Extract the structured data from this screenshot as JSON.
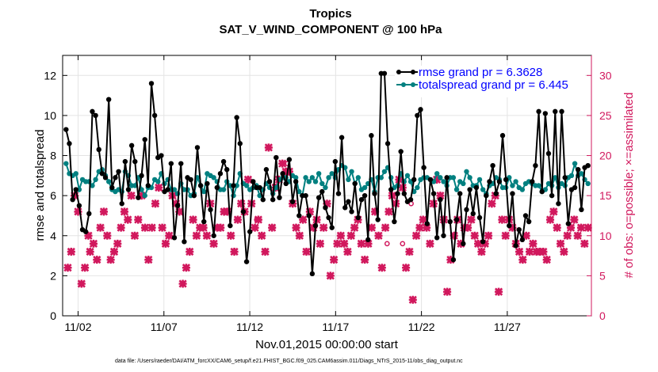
{
  "chart_data": {
    "type": "line",
    "title": "Tropics",
    "subtitle": "SAT_V_WIND_COMPONENT @ 100 hPa",
    "xlabel": "Nov.01,2015 00:00:00 start",
    "ylabel": "rmse and totalspread",
    "y2label": "# of obs: o=possible; ×=assimilated",
    "xlim": [
      0.6,
      31.4
    ],
    "ylim": [
      0,
      13
    ],
    "y2lim": [
      0,
      32.5
    ],
    "xticks": [
      1.5,
      6.5,
      11.5,
      16.5,
      21.5,
      26.5
    ],
    "xticklabels": [
      "11/02",
      "11/07",
      "11/12",
      "11/17",
      "11/22",
      "11/27"
    ],
    "yticks": [
      0,
      2,
      4,
      6,
      8,
      10,
      12
    ],
    "y2ticks": [
      0,
      5,
      10,
      15,
      20,
      25,
      30
    ],
    "grid": true,
    "legend_position": "top-right",
    "colors": {
      "rmse": "#000000",
      "spread": "#008080",
      "obs": "#d1185d",
      "legend_text": "#0000ff"
    },
    "series": [
      {
        "name": "rmse grand pr = 6.3628",
        "style": "line-dots",
        "values": [
          9.3,
          8.6,
          5.8,
          6.3,
          5.5,
          4.3,
          4.2,
          5.1,
          10.2,
          10.0,
          8.3,
          7.1,
          6.9,
          10.8,
          6.4,
          6.9,
          7.2,
          5.6,
          7.7,
          6.3,
          8.5,
          7.7,
          5.9,
          7.0,
          8.8,
          6.5,
          11.6,
          10.0,
          7.9,
          8.0,
          6.2,
          6.3,
          7.6,
          3.9,
          5.5,
          7.6,
          3.7,
          6.9,
          6.8,
          6.0,
          8.4,
          6.5,
          4.7,
          6.6,
          5.3,
          4.0,
          6.4,
          7.1,
          7.7,
          7.3,
          4.5,
          6.5,
          9.9,
          8.6,
          5.2,
          2.7,
          4.2,
          6.7,
          6.4,
          6.4,
          5.8,
          7.3,
          6.7,
          5.8,
          7.9,
          5.9,
          7.1,
          6.6,
          7.8,
          5.7,
          6.7,
          5.0,
          6.0,
          6.0,
          5.0,
          2.1,
          4.5,
          5.9,
          6.2,
          5.4,
          4.9,
          4.4,
          7.7,
          6.1,
          8.9,
          5.4,
          5.7,
          5.2,
          6.6,
          4.9,
          5.8,
          6.0,
          3.8,
          9.0,
          6.1,
          4.8,
          12.1,
          12.1,
          8.6,
          6.3,
          4.7,
          6.1,
          8.2,
          6.1,
          5.7,
          5.8,
          6.8,
          10.0,
          10.3,
          7.4,
          4.6,
          6.8,
          6.1,
          3.9,
          5.8,
          4.0,
          6.9,
          4.7,
          2.8,
          4.8,
          6.1,
          3.6,
          5.3,
          6.3,
          5.1,
          6.4,
          4.9,
          3.7,
          6.0,
          6.7,
          7.5,
          6.1,
          6.7,
          9.0,
          6.8,
          4.5,
          6.1,
          3.5,
          4.3,
          3.8,
          5.0,
          4.7,
          6.7,
          7.5,
          10.2,
          6.2,
          10.1,
          8.1,
          6.0,
          10.2,
          5.6,
          10.2,
          6.9,
          4.6,
          6.3,
          6.4,
          7.3,
          5.3,
          7.4,
          7.5
        ]
      },
      {
        "name": "totalspread grand pr = 6.445",
        "style": "line-dots",
        "values": [
          7.6,
          7.1,
          7.0,
          7.1,
          6.3,
          6.8,
          6.7,
          6.7,
          6.5,
          6.8,
          7.2,
          7.3,
          7.0,
          6.7,
          6.3,
          6.2,
          6.3,
          6.2,
          7.2,
          7.0,
          6.5,
          6.5,
          6.9,
          6.3,
          6.0,
          6.4,
          6.4,
          6.8,
          6.7,
          7.1,
          6.6,
          6.8,
          6.3,
          6.3,
          6.1,
          6.6,
          6.3,
          6.3,
          6.0,
          6.1,
          6.9,
          6.5,
          6.2,
          7.1,
          7.0,
          6.9,
          6.7,
          6.3,
          6.3,
          6.7,
          6.5,
          6.0,
          6.5,
          7.1,
          6.6,
          6.5,
          6.3,
          6.4,
          6.5,
          6.0,
          6.3,
          6.6,
          6.4,
          6.1,
          6.4,
          6.8,
          6.9,
          6.9,
          6.7,
          7.0,
          6.9,
          6.2,
          6.0,
          6.9,
          6.7,
          6.9,
          6.7,
          7.1,
          6.6,
          6.4,
          6.9,
          7.1,
          6.9,
          7.3,
          7.5,
          7.4,
          6.8,
          7.2,
          6.6,
          6.9,
          6.3,
          6.4,
          6.6,
          6.8,
          6.2,
          6.9,
          6.9,
          7.2,
          7.4,
          6.9,
          6.4,
          6.5,
          7.1,
          6.7,
          7.0,
          6.7,
          6.2,
          6.4,
          6.8,
          6.9,
          6.9,
          6.8,
          6.7,
          7.1,
          6.9,
          6.7,
          6.5,
          6.9,
          6.9,
          6.3,
          6.7,
          6.6,
          7.2,
          6.9,
          6.5,
          6.5,
          6.8,
          6.3,
          6.1,
          6.5,
          6.6,
          6.9,
          6.8,
          6.4,
          6.4,
          6.9,
          6.5,
          6.7,
          6.4,
          6.3,
          6.6,
          6.7,
          6.6,
          6.5,
          6.5,
          6.2,
          6.3,
          6.6,
          6.5,
          6.9,
          6.4,
          6.6,
          6.5,
          6.9,
          7.0,
          7.6,
          7.0,
          7.1,
          6.8,
          6.6
        ]
      },
      {
        "name": "# of obs assimilated",
        "axis": "right",
        "style": "markers",
        "points": [
          [
            0.9,
            6
          ],
          [
            1.1,
            8
          ],
          [
            1.3,
            15
          ],
          [
            1.5,
            13
          ],
          [
            1.7,
            4
          ],
          [
            1.9,
            6
          ],
          [
            2.1,
            10
          ],
          [
            2.2,
            8
          ],
          [
            2.4,
            9
          ],
          [
            2.6,
            7
          ],
          [
            2.8,
            11
          ],
          [
            3.0,
            13
          ],
          [
            3.2,
            10
          ],
          [
            3.4,
            7
          ],
          [
            3.6,
            8
          ],
          [
            3.8,
            9
          ],
          [
            4.0,
            11
          ],
          [
            4.2,
            13
          ],
          [
            4.4,
            12
          ],
          [
            4.6,
            15
          ],
          [
            4.8,
            10
          ],
          [
            5.0,
            12
          ],
          [
            5.2,
            15
          ],
          [
            5.4,
            11
          ],
          [
            5.6,
            7
          ],
          [
            5.8,
            11
          ],
          [
            6.0,
            14
          ],
          [
            6.2,
            16
          ],
          [
            6.4,
            11
          ],
          [
            6.6,
            9
          ],
          [
            6.8,
            10
          ],
          [
            7.0,
            15
          ],
          [
            7.2,
            14
          ],
          [
            7.4,
            13
          ],
          [
            7.6,
            4
          ],
          [
            7.8,
            6
          ],
          [
            8.0,
            8
          ],
          [
            8.2,
            12
          ],
          [
            8.4,
            10
          ],
          [
            8.6,
            11
          ],
          [
            8.8,
            11
          ],
          [
            9.0,
            10
          ],
          [
            9.2,
            14
          ],
          [
            9.4,
            9
          ],
          [
            9.6,
            11
          ],
          [
            9.8,
            11
          ],
          [
            10.0,
            13
          ],
          [
            10.2,
            13
          ],
          [
            10.4,
            10
          ],
          [
            10.6,
            8
          ],
          [
            10.8,
            12
          ],
          [
            11.0,
            14
          ],
          [
            11.2,
            13
          ],
          [
            11.4,
            17
          ],
          [
            11.6,
            14
          ],
          [
            11.8,
            11
          ],
          [
            12.0,
            12
          ],
          [
            12.2,
            10
          ],
          [
            12.4,
            8
          ],
          [
            12.6,
            21
          ],
          [
            12.8,
            11
          ],
          [
            13.0,
            16
          ],
          [
            13.2,
            17
          ],
          [
            13.4,
            19
          ],
          [
            13.6,
            18
          ],
          [
            13.8,
            18
          ],
          [
            14.0,
            14
          ],
          [
            14.2,
            11
          ],
          [
            14.4,
            10
          ],
          [
            14.6,
            12
          ],
          [
            14.8,
            8
          ],
          [
            15.0,
            13
          ],
          [
            15.2,
            11
          ],
          [
            15.4,
            12
          ],
          [
            15.6,
            9
          ],
          [
            15.8,
            11
          ],
          [
            16.0,
            14
          ],
          [
            16.2,
            5
          ],
          [
            16.4,
            7
          ],
          [
            16.6,
            9
          ],
          [
            16.8,
            10
          ],
          [
            17.0,
            9
          ],
          [
            17.2,
            8
          ],
          [
            17.4,
            10
          ],
          [
            17.6,
            11
          ],
          [
            17.8,
            12
          ],
          [
            18.0,
            9
          ],
          [
            18.2,
            7
          ],
          [
            18.4,
            9
          ],
          [
            18.6,
            11
          ],
          [
            18.8,
            13
          ],
          [
            19.0,
            10
          ],
          [
            19.2,
            6
          ],
          [
            19.4,
            11
          ],
          [
            19.6,
            13
          ],
          [
            19.8,
            15
          ],
          [
            20.0,
            14
          ],
          [
            20.2,
            17
          ],
          [
            20.4,
            16
          ],
          [
            20.6,
            6
          ],
          [
            20.8,
            8
          ],
          [
            21.0,
            2
          ],
          [
            21.2,
            10
          ],
          [
            21.4,
            11
          ],
          [
            21.6,
            12
          ],
          [
            21.8,
            11
          ],
          [
            22.0,
            9
          ],
          [
            22.2,
            14
          ],
          [
            22.4,
            17
          ],
          [
            22.6,
            15
          ],
          [
            22.8,
            12
          ],
          [
            23.0,
            3
          ],
          [
            23.2,
            7
          ],
          [
            23.4,
            10
          ],
          [
            23.6,
            12
          ],
          [
            23.8,
            9
          ],
          [
            24.0,
            11
          ],
          [
            24.2,
            11
          ],
          [
            24.4,
            12
          ],
          [
            24.6,
            10
          ],
          [
            24.8,
            9
          ],
          [
            25.0,
            8
          ],
          [
            25.2,
            9
          ],
          [
            25.4,
            10
          ],
          [
            25.6,
            14
          ],
          [
            25.8,
            15
          ],
          [
            26.0,
            3
          ],
          [
            26.2,
            12
          ],
          [
            26.4,
            10
          ],
          [
            26.6,
            12
          ],
          [
            26.8,
            11
          ],
          [
            27.0,
            9
          ],
          [
            27.2,
            8
          ],
          [
            27.4,
            7
          ],
          [
            27.6,
            10
          ],
          [
            27.8,
            8
          ],
          [
            28.0,
            9
          ],
          [
            28.2,
            8
          ],
          [
            28.4,
            8
          ],
          [
            28.6,
            8
          ],
          [
            28.8,
            7
          ],
          [
            29.0,
            12
          ],
          [
            29.2,
            13
          ],
          [
            29.4,
            11
          ],
          [
            29.6,
            9
          ],
          [
            29.8,
            8
          ],
          [
            30.0,
            10
          ],
          [
            30.2,
            11
          ],
          [
            30.4,
            12
          ],
          [
            30.6,
            10
          ],
          [
            30.8,
            11
          ],
          [
            31.0,
            9
          ],
          [
            31.2,
            11
          ]
        ]
      },
      {
        "name": "# of obs possible",
        "axis": "right",
        "style": "circles",
        "points": [
          [
            11.9,
            12
          ],
          [
            13.7,
            19
          ],
          [
            19.5,
            9
          ],
          [
            20.4,
            9
          ],
          [
            20.9,
            14
          ],
          [
            25.0,
            9
          ]
        ]
      }
    ],
    "footnote": "data file: /Users/raeder/DAI/ATM_forcXX/CAM6_setup/f.e21.FHIST_BGC.f09_025.CAM6assim.011/Diags_NTrS_2015-11/obs_diag_output.nc"
  }
}
